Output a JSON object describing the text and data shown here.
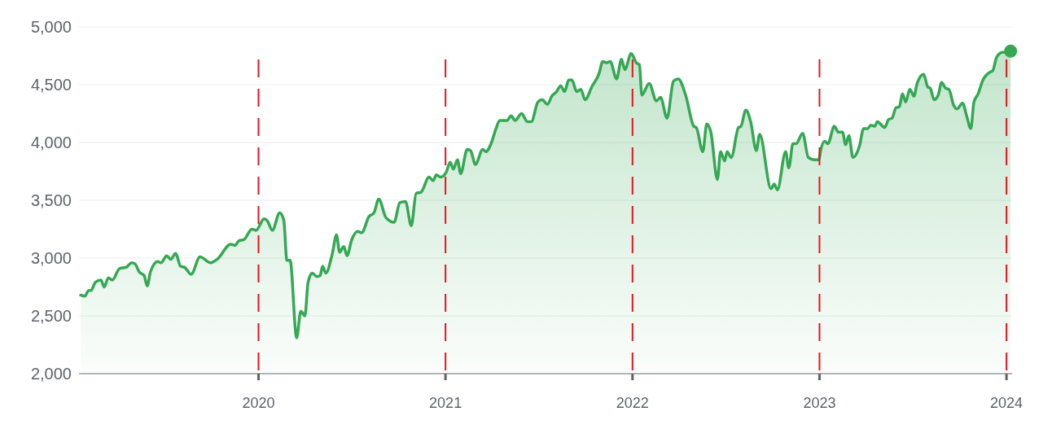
{
  "chart_data": {
    "type": "area",
    "xlim": [
      2019.04,
      2024.03
    ],
    "ylim": [
      2000,
      5000
    ],
    "xticks": [
      2020,
      2021,
      2022,
      2023,
      2024
    ],
    "yticks": [
      {
        "value": 2000,
        "label": "2,000"
      },
      {
        "value": 2500,
        "label": "2,500"
      },
      {
        "value": 3000,
        "label": "3,000"
      },
      {
        "value": 3500,
        "label": "3,500"
      },
      {
        "value": 4000,
        "label": "4,000"
      },
      {
        "value": 4500,
        "label": "4,500"
      },
      {
        "value": 5000,
        "label": "5,000"
      }
    ],
    "grid": "y",
    "ref_lines": [
      {
        "axis": "x",
        "value": 2020,
        "color": "#e8141c",
        "line_style": "dashed"
      },
      {
        "axis": "x",
        "value": 2021,
        "color": "#e8141c",
        "line_style": "dashed"
      },
      {
        "axis": "x",
        "value": 2022,
        "color": "#e8141c",
        "line_style": "dashed"
      },
      {
        "axis": "x",
        "value": 2023,
        "color": "#e8141c",
        "line_style": "dashed"
      },
      {
        "axis": "x",
        "value": 2024,
        "color": "#e8141c",
        "line_style": "dashed"
      }
    ],
    "series": [
      {
        "color": "#34a853",
        "x": [
          2019.049,
          2019.071,
          2019.092,
          2019.105,
          2019.127,
          2019.157,
          2019.175,
          2019.197,
          2019.218,
          2019.257,
          2019.292,
          2019.322,
          2019.34,
          2019.362,
          2019.388,
          2019.405,
          2019.422,
          2019.461,
          2019.479,
          2019.509,
          2019.531,
          2019.557,
          2019.583,
          2019.605,
          2019.64,
          2019.687,
          2019.744,
          2019.779,
          2019.852,
          2019.874,
          2019.896,
          2019.922,
          2019.965,
          2019.987,
          2020.03,
          2020.048,
          2020.074,
          2020.113,
          2020.135,
          2020.152,
          2020.169,
          2020.204,
          2020.226,
          2020.248,
          2020.265,
          2020.287,
          2020.313,
          2020.33,
          2020.343,
          2020.36,
          2020.395,
          2020.417,
          2020.434,
          2020.456,
          2020.473,
          2020.499,
          2020.53,
          2020.552,
          2020.591,
          2020.617,
          2020.643,
          2020.682,
          2020.725,
          2020.756,
          2020.786,
          2020.817,
          2020.843,
          2020.869,
          2020.912,
          2020.934,
          2020.951,
          2020.973,
          2021.003,
          2021.025,
          2021.042,
          2021.064,
          2021.081,
          2021.116,
          2021.134,
          2021.16,
          2021.199,
          2021.216,
          2021.246,
          2021.268,
          2021.29,
          2021.329,
          2021.351,
          2021.372,
          2021.407,
          2021.438,
          2021.459,
          2021.494,
          2021.516,
          2021.546,
          2021.568,
          2021.594,
          2021.616,
          2021.637,
          2021.659,
          2021.676,
          2021.702,
          2021.724,
          2021.746,
          2021.785,
          2021.82,
          2021.841,
          2021.863,
          2021.881,
          2021.915,
          2021.941,
          2021.959,
          2021.993,
          2022.02,
          2022.037,
          2022.05,
          2022.089,
          2022.128,
          2022.15,
          2022.185,
          2022.219,
          2022.245,
          2022.284,
          2022.328,
          2022.341,
          2022.376,
          2022.397,
          2022.419,
          2022.454,
          2022.471,
          2022.493,
          2022.506,
          2022.528,
          2022.567,
          2022.58,
          2022.606,
          2022.632,
          2022.662,
          2022.68,
          2022.741,
          2022.758,
          2022.775,
          2022.819,
          2022.836,
          2022.858,
          2022.875,
          2022.91,
          2022.94,
          2022.971,
          2022.997,
          2023.005,
          2023.027,
          2023.045,
          2023.079,
          2023.101,
          2023.123,
          2023.14,
          2023.157,
          2023.179,
          2023.214,
          2023.236,
          2023.257,
          2023.275,
          2023.296,
          2023.309,
          2023.349,
          2023.37,
          2023.388,
          2023.409,
          2023.427,
          2023.444,
          2023.461,
          2023.483,
          2023.505,
          2023.522,
          2023.557,
          2023.579,
          2023.592,
          2023.613,
          2023.635,
          2023.653,
          2023.674,
          2023.692,
          2023.718,
          2023.735,
          2023.765,
          2023.787,
          2023.809,
          2023.826,
          2023.848,
          2023.874,
          2023.913,
          2023.926,
          2023.948,
          2023.978,
          2024.0,
          2024.022
        ],
        "values": [
          2680,
          2670,
          2720,
          2720,
          2790,
          2810,
          2750,
          2830,
          2810,
          2910,
          2920,
          2960,
          2950,
          2880,
          2850,
          2760,
          2880,
          2970,
          2960,
          3020,
          2990,
          3040,
          2930,
          2920,
          2860,
          3010,
          2960,
          2990,
          3120,
          3110,
          3150,
          3160,
          3250,
          3240,
          3340,
          3320,
          3240,
          3390,
          3330,
          2980,
          2980,
          2310,
          2540,
          2500,
          2790,
          2870,
          2840,
          2850,
          2930,
          2870,
          3040,
          3200,
          3050,
          3100,
          3020,
          3160,
          3230,
          3220,
          3360,
          3390,
          3510,
          3350,
          3310,
          3480,
          3490,
          3280,
          3560,
          3570,
          3700,
          3670,
          3720,
          3700,
          3740,
          3830,
          3770,
          3850,
          3730,
          3940,
          3930,
          3810,
          3940,
          3920,
          4000,
          4110,
          4190,
          4190,
          4230,
          4190,
          4250,
          4180,
          4180,
          4350,
          4370,
          4330,
          4400,
          4440,
          4490,
          4440,
          4540,
          4540,
          4440,
          4460,
          4370,
          4490,
          4590,
          4700,
          4690,
          4700,
          4550,
          4720,
          4630,
          4770,
          4690,
          4670,
          4410,
          4510,
          4360,
          4390,
          4210,
          4530,
          4550,
          4410,
          4140,
          4130,
          3920,
          4160,
          4090,
          3680,
          3920,
          3840,
          3920,
          3870,
          4130,
          4140,
          4280,
          4180,
          3930,
          4070,
          3600,
          3640,
          3590,
          3920,
          3780,
          3990,
          3990,
          4080,
          3870,
          3850,
          3850,
          3920,
          4010,
          3990,
          4140,
          4090,
          4090,
          3980,
          4060,
          3870,
          3970,
          4120,
          4120,
          4150,
          4140,
          4180,
          4130,
          4200,
          4210,
          4300,
          4310,
          4420,
          4350,
          4460,
          4400,
          4510,
          4590,
          4480,
          4470,
          4370,
          4410,
          4520,
          4470,
          4460,
          4320,
          4290,
          4340,
          4230,
          4120,
          4350,
          4420,
          4540,
          4610,
          4620,
          4740,
          4780,
          4780,
          4790
        ]
      },
      {
        "type": "scatter",
        "color": "#34a853",
        "marker": "circle",
        "x": [
          2024.022
        ],
        "values": [
          4790
        ]
      }
    ]
  }
}
